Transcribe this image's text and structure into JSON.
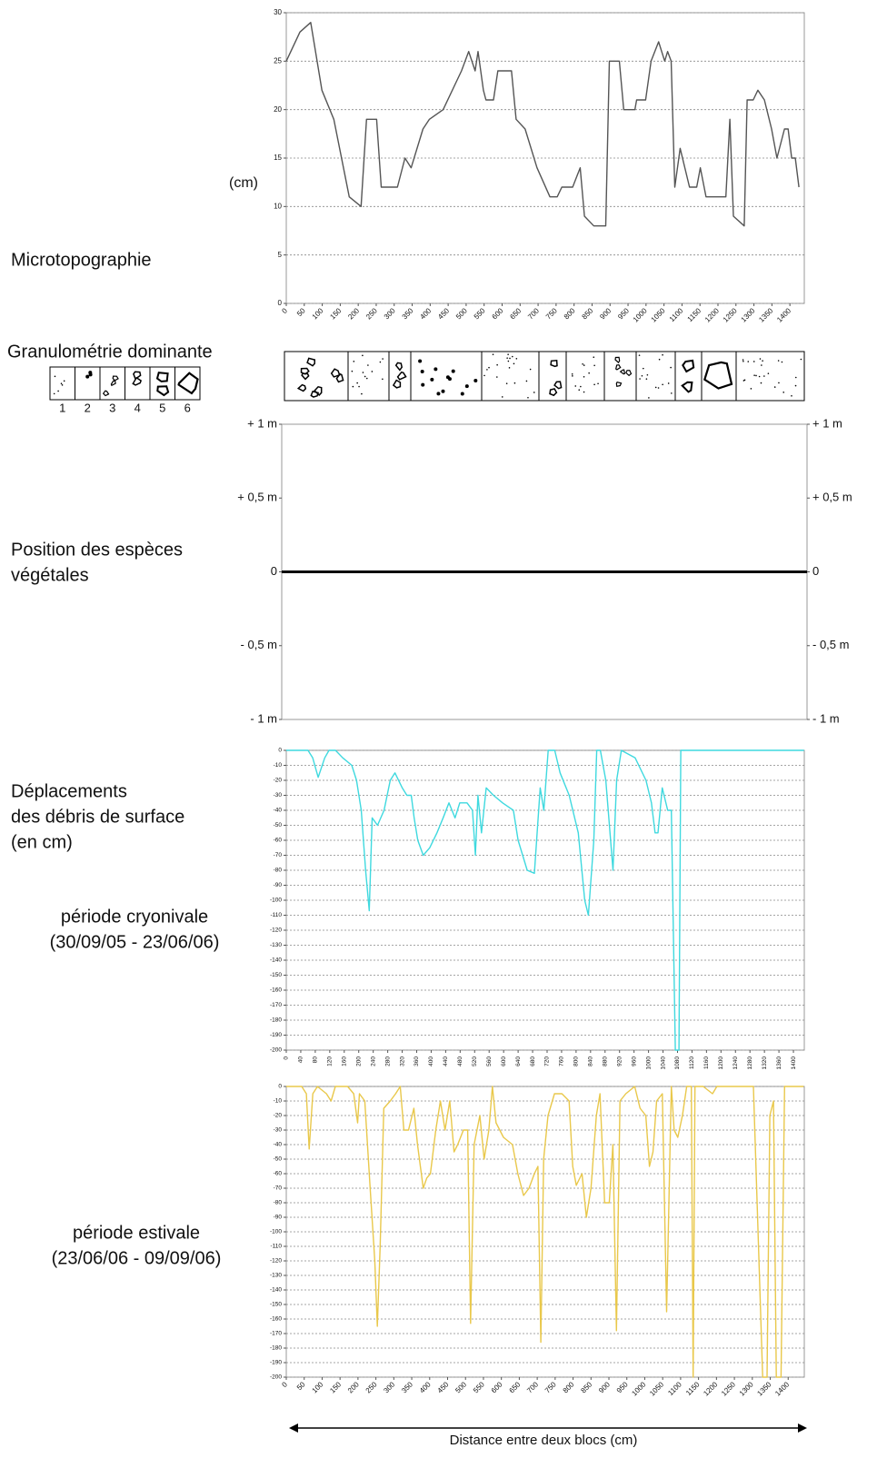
{
  "labels": {
    "microtopography": "Microtopographie",
    "granulometry": "Granulométrie dominante",
    "species": [
      "Position des espèces",
      "végétales"
    ],
    "displacement": [
      "Déplacements",
      "des débris de surface",
      "(en cm)"
    ],
    "cryonival": [
      "période cryonivale",
      "(30/09/05 - 23/06/06)"
    ],
    "summer": [
      "période estivale",
      "(23/06/06 - 09/09/06)"
    ]
  },
  "granulometry_legend": [
    1,
    2,
    3,
    4,
    5,
    6
  ],
  "chart_data": [
    {
      "type": "line",
      "ylabel": "(cm)",
      "x": [
        0,
        38,
        68,
        99,
        132,
        175,
        208,
        223,
        251,
        264,
        309,
        330,
        347,
        380,
        398,
        436,
        487,
        507,
        525,
        533,
        548,
        555,
        576,
        588,
        626,
        639,
        664,
        697,
        733,
        753,
        766,
        796,
        817,
        829,
        855,
        888,
        898,
        926,
        938,
        969,
        974,
        999,
        1014,
        1035,
        1052,
        1060,
        1070,
        1080,
        1095,
        1121,
        1141,
        1151,
        1167,
        1222,
        1233,
        1243,
        1273,
        1281,
        1298,
        1311,
        1329,
        1349,
        1364,
        1385,
        1395,
        1405,
        1415,
        1425
      ],
      "series": [
        {
          "color": "#555555",
          "values": [
            25,
            28,
            29,
            22,
            19,
            11,
            10,
            19,
            19,
            12,
            12,
            15,
            14,
            18,
            19,
            20,
            24,
            26,
            24,
            26,
            22,
            21,
            21,
            24,
            24,
            19,
            18,
            14,
            11,
            11,
            12,
            12,
            14,
            9,
            8,
            8,
            25,
            25,
            20,
            20,
            21,
            21,
            25,
            27,
            25,
            26,
            25,
            12,
            16,
            12,
            12,
            14,
            11,
            11,
            19,
            9,
            8,
            21,
            21,
            22,
            21,
            18,
            15,
            18,
            18,
            15,
            15,
            12
          ]
        }
      ],
      "xlim": [
        0,
        1440
      ],
      "ylim": [
        0,
        30
      ],
      "xticks": [
        0,
        50,
        100,
        150,
        200,
        250,
        300,
        350,
        400,
        450,
        500,
        550,
        600,
        650,
        700,
        750,
        800,
        850,
        900,
        950,
        1000,
        1050,
        1100,
        1150,
        1200,
        1250,
        1300,
        1350,
        1400
      ],
      "yticks": [
        0,
        5,
        10,
        15,
        20,
        25,
        30
      ],
      "grid": true
    },
    {
      "type": "line",
      "series": [],
      "ylim": [
        -1,
        1
      ],
      "yticks": [
        {
          "value": -1,
          "label": "- 1 m"
        },
        {
          "value": -0.5,
          "label": "- 0,5 m"
        },
        0,
        {
          "value": 0.5,
          "label": "+ 0,5 m"
        },
        {
          "value": 1,
          "label": "+ 1 m"
        }
      ],
      "y2lim": [
        -1,
        1
      ],
      "y2ticks": [
        {
          "value": -1,
          "label": "- 1 m"
        },
        {
          "value": -0.5,
          "label": "- 0,5 m"
        },
        0,
        {
          "value": 0.5,
          "label": "+ 0,5 m"
        },
        {
          "value": 1,
          "label": "+ 1 m"
        }
      ],
      "grid": false
    },
    {
      "type": "line",
      "x": [
        0,
        60,
        73,
        88,
        106,
        118,
        136,
        156,
        181,
        194,
        207,
        219,
        229,
        237,
        252,
        270,
        287,
        300,
        320,
        333,
        345,
        353,
        363,
        378,
        396,
        416,
        433,
        449,
        466,
        479,
        499,
        514,
        522,
        529,
        539,
        552,
        572,
        597,
        627,
        640,
        665,
        685,
        701,
        711,
        723,
        741,
        756,
        781,
        806,
        824,
        834,
        849,
        857,
        867,
        882,
        902,
        912,
        925,
        963,
        993,
        1008,
        1018,
        1026,
        1038,
        1053,
        1063,
        1074,
        1084,
        1089,
        1429
      ],
      "series": [
        {
          "color": "#3fd9df",
          "values": [
            0,
            0,
            -5,
            -18,
            -5,
            0,
            0,
            -5,
            -10,
            -20,
            -40,
            -80,
            -107,
            -45,
            -50,
            -40,
            -20,
            -15,
            -25,
            -30,
            -30,
            -45,
            -60,
            -70,
            -65,
            -55,
            -45,
            -35,
            -45,
            -35,
            -35,
            -40,
            -70,
            -30,
            -55,
            -25,
            -30,
            -35,
            -40,
            -60,
            -80,
            -82,
            -25,
            -40,
            0,
            0,
            -15,
            -30,
            -55,
            -100,
            -110,
            -60,
            0,
            0,
            -20,
            -80,
            -20,
            0,
            -5,
            -20,
            -35,
            -55,
            -55,
            -25,
            -40,
            -40,
            -200,
            -200,
            0,
            0
          ]
        }
      ],
      "xlim": [
        0,
        1430
      ],
      "ylim": [
        -200,
        0
      ],
      "xticks": [
        0,
        40,
        80,
        120,
        160,
        200,
        240,
        280,
        320,
        360,
        400,
        440,
        480,
        520,
        560,
        600,
        640,
        680,
        720,
        760,
        800,
        840,
        880,
        920,
        960,
        1000,
        1040,
        1080,
        1120,
        1160,
        1200,
        1240,
        1280,
        1320,
        1360,
        1400
      ],
      "yticks": [
        -200,
        -190,
        -180,
        -170,
        -160,
        -150,
        -140,
        -130,
        -120,
        -110,
        -100,
        -90,
        -80,
        -70,
        -60,
        -50,
        -40,
        -30,
        -20,
        -10,
        0
      ],
      "grid": true
    },
    {
      "type": "line",
      "xlabel": "Distance entre deux blocs (cm)",
      "x": [
        0,
        43,
        56,
        64,
        74,
        87,
        112,
        125,
        137,
        171,
        188,
        199,
        204,
        219,
        234,
        247,
        254,
        262,
        272,
        290,
        305,
        318,
        328,
        341,
        356,
        366,
        382,
        392,
        402,
        417,
        430,
        443,
        456,
        468,
        478,
        494,
        506,
        514,
        524,
        540,
        552,
        565,
        575,
        585,
        606,
        631,
        646,
        662,
        677,
        692,
        702,
        710,
        718,
        730,
        748,
        769,
        789,
        799,
        809,
        825,
        837,
        850,
        865,
        875,
        888,
        901,
        911,
        921,
        931,
        947,
        972,
        987,
        1003,
        1013,
        1023,
        1033,
        1049,
        1061,
        1074,
        1082,
        1092,
        1105,
        1117,
        1130,
        1135,
        1140,
        1163,
        1189,
        1201,
        1303,
        1329,
        1341,
        1349,
        1359,
        1367,
        1380,
        1390,
        1443
      ],
      "series": [
        {
          "color": "#e9c84b",
          "values": [
            0,
            0,
            -5,
            -43,
            -5,
            0,
            -5,
            -10,
            0,
            0,
            -5,
            -25,
            -5,
            -10,
            -70,
            -120,
            -165,
            -110,
            -15,
            -10,
            -5,
            0,
            -30,
            -30,
            -15,
            -40,
            -70,
            -63,
            -60,
            -30,
            -10,
            -30,
            -10,
            -45,
            -40,
            -30,
            -30,
            -163,
            -40,
            -20,
            -50,
            -30,
            0,
            -25,
            -35,
            -40,
            -60,
            -75,
            -70,
            -60,
            -55,
            -176,
            -50,
            -20,
            -5,
            -5,
            -10,
            -55,
            -68,
            -60,
            -90,
            -70,
            -20,
            -5,
            -80,
            -80,
            -40,
            -168,
            -10,
            -5,
            0,
            -15,
            -20,
            -55,
            -45,
            -10,
            -5,
            -155,
            0,
            -30,
            -35,
            -20,
            0,
            0,
            -200,
            0,
            0,
            -5,
            0,
            0,
            -200,
            -200,
            -20,
            -10,
            -200,
            -200,
            0,
            0
          ]
        }
      ],
      "xlim": [
        0,
        1445
      ],
      "ylim": [
        -200,
        0
      ],
      "xticks": [
        0,
        50,
        100,
        150,
        200,
        250,
        300,
        350,
        400,
        450,
        500,
        550,
        600,
        650,
        700,
        750,
        800,
        850,
        900,
        950,
        1000,
        1050,
        1100,
        1150,
        1200,
        1250,
        1300,
        1350,
        1400
      ],
      "yticks": [
        -200,
        -190,
        -180,
        -170,
        -160,
        -150,
        -140,
        -130,
        -120,
        -110,
        -100,
        -90,
        -80,
        -70,
        -60,
        -50,
        -40,
        -30,
        -20,
        -10,
        0
      ],
      "grid": true
    }
  ]
}
